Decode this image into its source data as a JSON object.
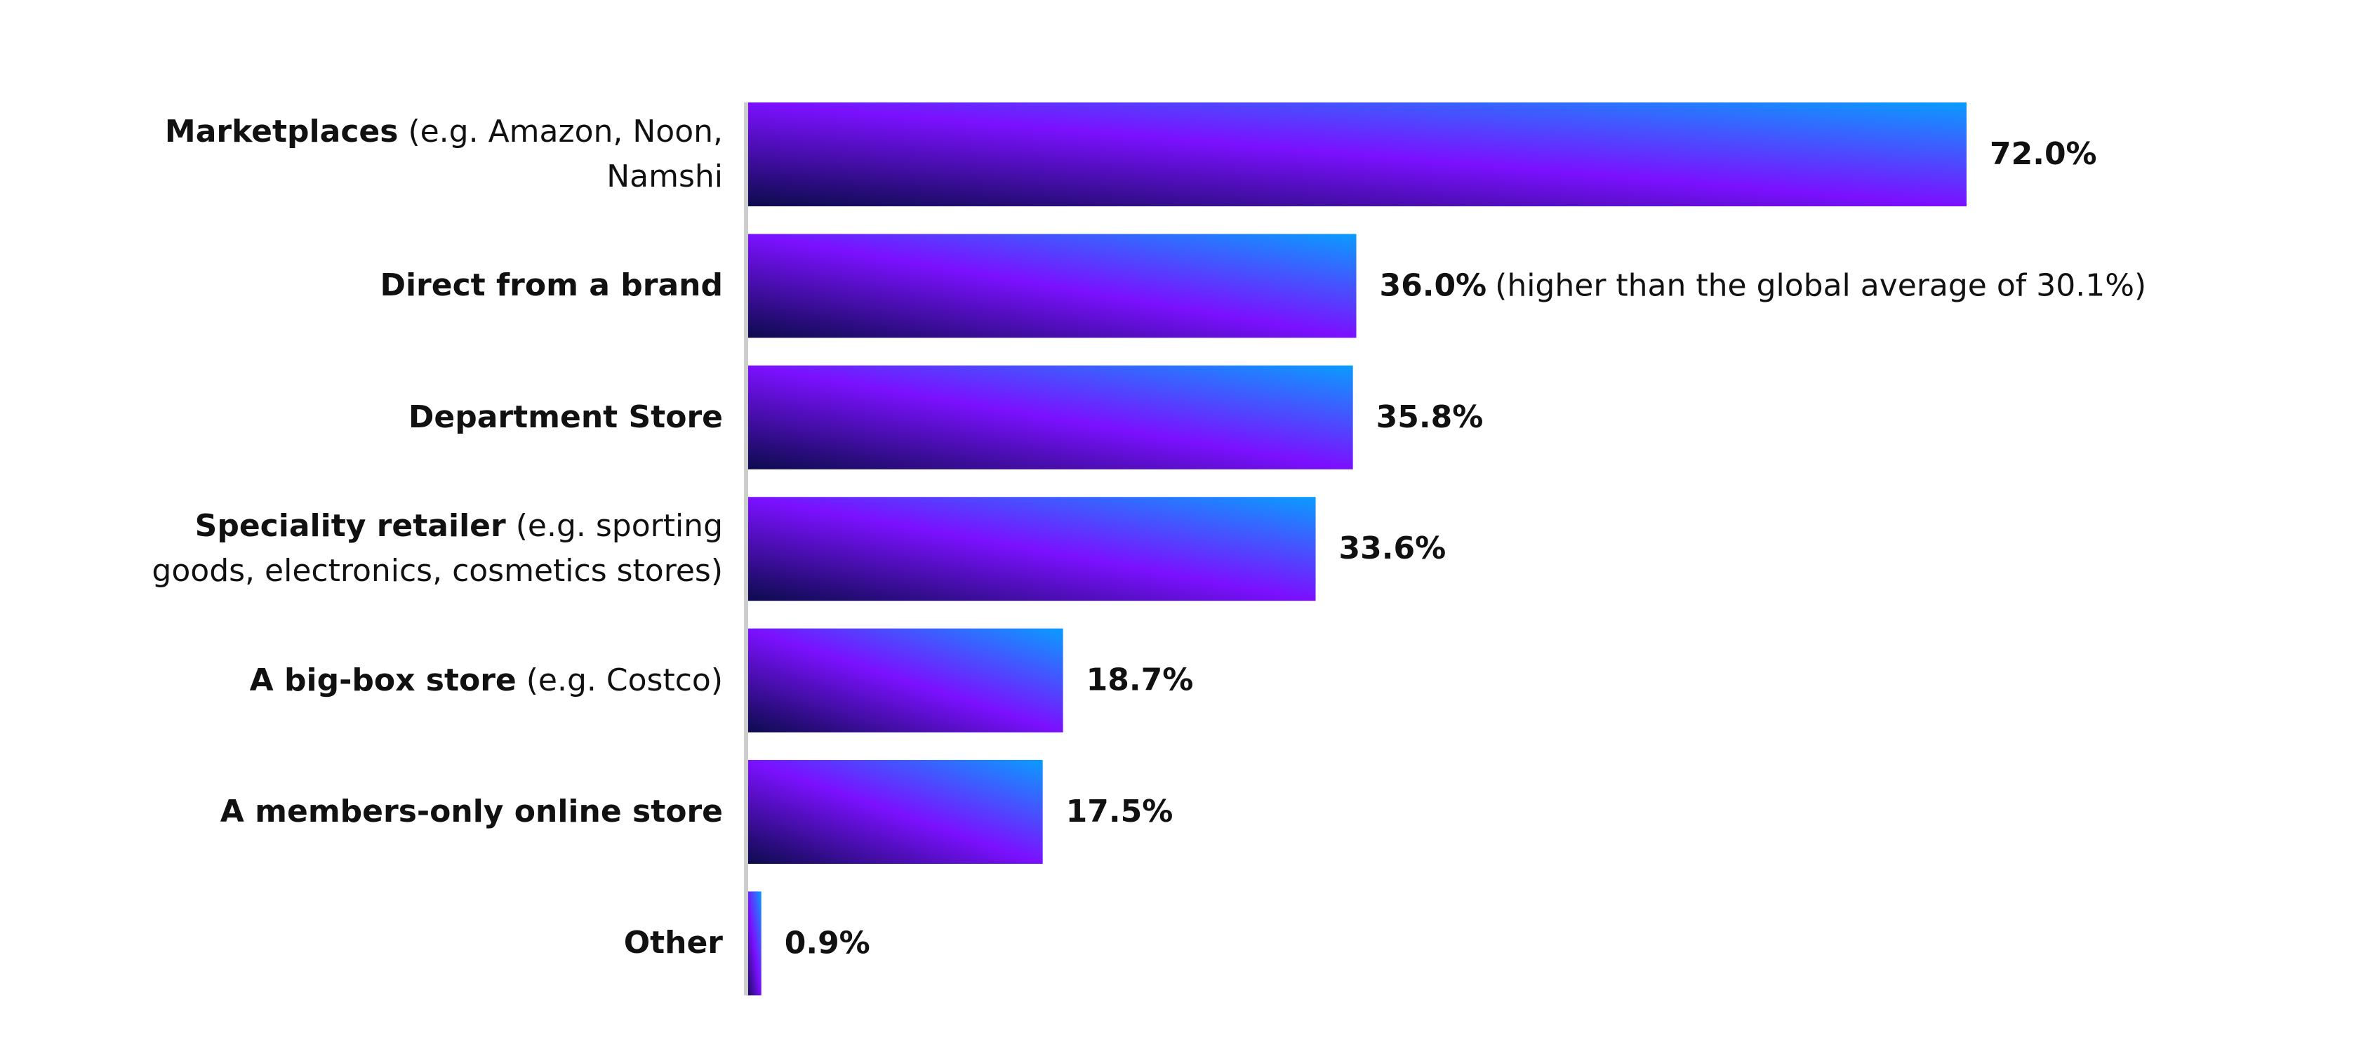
{
  "chart_data": {
    "type": "barh",
    "categories": [
      "Marketplaces",
      "Direct from a brand",
      "Department Store",
      "Speciality retailer",
      "A big-box store",
      "A members-only online store",
      "Other"
    ],
    "category_notes": [
      "(e.g. Amazon, Noon, Namshi",
      null,
      null,
      "(e.g. sporting goods, electronics, cosmetics stores)",
      "(e.g. Costco)",
      null,
      null
    ],
    "values": [
      72.0,
      36.0,
      35.8,
      33.6,
      18.7,
      17.5,
      0.9
    ],
    "value_labels": [
      "72.0%",
      "36.0%",
      "35.8%",
      "33.6%",
      "18.7%",
      "17.5%",
      "0.9%"
    ],
    "value_notes": [
      null,
      "(higher than the global average of 30.1%)",
      null,
      null,
      null,
      null,
      null
    ],
    "gradient": [
      "#0c0b4d",
      "#7b10ff",
      "#0a9cff"
    ],
    "axis_color": "#cccccc"
  }
}
